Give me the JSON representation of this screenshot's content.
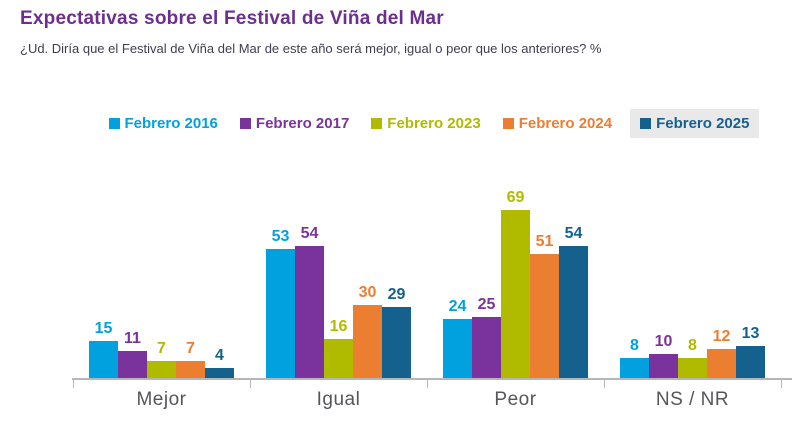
{
  "header": {
    "title": "Expectativas sobre el Festival de Viña del Mar",
    "subtitle": "¿Ud. Diría que el Festival de Viña del Mar de este año será mejor, igual o peor que los anteriores? %"
  },
  "colors": {
    "title_text": "#6C2E90",
    "subtitle_text": "#3E3E50",
    "axis": "#B4B6B8",
    "category_label": "#55565A",
    "legend_highlight_bg": "#E9E9E9"
  },
  "chart_data": {
    "type": "bar",
    "title": "Expectativas sobre el Festival de Viña del Mar",
    "subtitle": "¿Ud. Diría que el Festival de Viña del Mar de este año será mejor, igual o peor que los anteriores? %",
    "categories": [
      "Mejor",
      "Igual",
      "Peor",
      "NS / NR"
    ],
    "series": [
      {
        "name": "Febrero 2016",
        "color": "#00A1DE",
        "highlighted": false,
        "values": [
          15,
          53,
          24,
          8
        ]
      },
      {
        "name": "Febrero 2017",
        "color": "#7A339C",
        "highlighted": false,
        "values": [
          11,
          54,
          25,
          10
        ]
      },
      {
        "name": "Febrero 2023",
        "color": "#B0BB00",
        "highlighted": false,
        "values": [
          7,
          16,
          69,
          8
        ]
      },
      {
        "name": "Febrero 2024",
        "color": "#EC7E32",
        "highlighted": false,
        "values": [
          7,
          30,
          51,
          12
        ]
      },
      {
        "name": "Febrero 2025",
        "color": "#15618E",
        "highlighted": true,
        "values": [
          4,
          29,
          54,
          13
        ]
      }
    ],
    "xlabel": "",
    "ylabel": "",
    "ylim": [
      0,
      75
    ],
    "units": "%",
    "value_labels": true,
    "grid": false,
    "legend_position": "top-center"
  }
}
